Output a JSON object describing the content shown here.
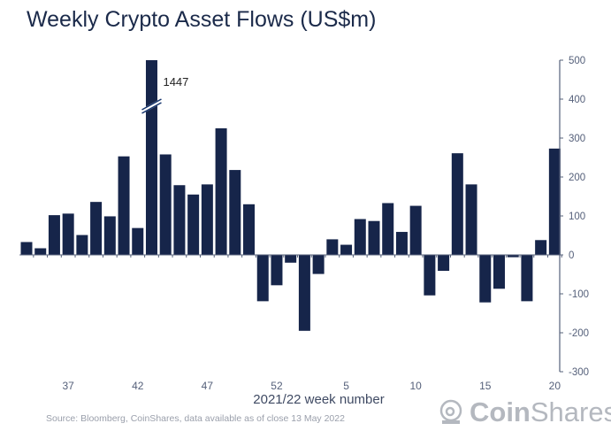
{
  "chart_data": {
    "type": "bar",
    "title": "Weekly Crypto Asset Flows (US$m)",
    "xlabel": "2021/22 week number",
    "ylabel": "",
    "ylim": [
      -300,
      500
    ],
    "yticks": [
      500,
      400,
      300,
      200,
      100,
      0,
      -100,
      -200,
      -300
    ],
    "y_axis_side": "right",
    "xtick_labels": [
      "37",
      "42",
      "47",
      "52",
      "5",
      "10",
      "15",
      "20"
    ],
    "categories": [
      "34",
      "35",
      "36",
      "37",
      "38",
      "39",
      "40",
      "41",
      "42",
      "43",
      "44",
      "45",
      "46",
      "47",
      "48",
      "49",
      "50",
      "51",
      "52",
      "1",
      "2",
      "3",
      "4",
      "5",
      "6",
      "7",
      "8",
      "9",
      "10",
      "11",
      "12",
      "13",
      "14",
      "15",
      "16",
      "17",
      "18",
      "19",
      "20"
    ],
    "values": [
      33,
      17,
      102,
      106,
      51,
      136,
      99,
      253,
      69,
      1447,
      258,
      179,
      155,
      181,
      325,
      218,
      130,
      -119,
      -78,
      -20,
      -195,
      -49,
      40,
      26,
      92,
      87,
      133,
      59,
      126,
      -104,
      -41,
      261,
      181,
      -122,
      -87,
      -6,
      -119,
      38,
      273
    ],
    "annotations": [
      {
        "category": "43",
        "text": "1447",
        "note": "axis break"
      }
    ],
    "bar_color": "#16254a",
    "grid": false
  },
  "source": "Source: Bloomberg, CoinShares, data available as of close 13 May 2022",
  "logo": {
    "bold": "Coin",
    "light": "Shares"
  }
}
